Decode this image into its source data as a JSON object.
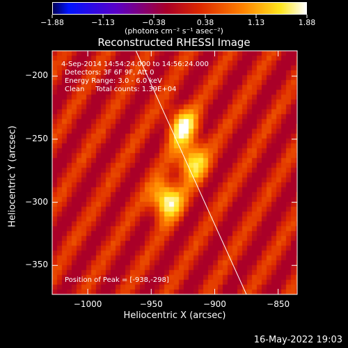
{
  "chart_data": {
    "type": "heatmap",
    "title": "Reconstructed RHESSI Image",
    "xlabel": "Heliocentric X (arcsec)",
    "ylabel": "Heliocentric Y (arcsec)",
    "xlim": [
      -1028,
      -835
    ],
    "ylim": [
      -373,
      -180
    ],
    "xticks": [
      -1000,
      -950,
      -900,
      -850
    ],
    "xtick_labels": [
      "−1000",
      "−950",
      "−900",
      "−850"
    ],
    "yticks": [
      -200,
      -250,
      -300,
      -350
    ],
    "ytick_labels": [
      "−200",
      "−250",
      "−300",
      "−350"
    ],
    "colorbar": {
      "min": -1.88,
      "max": 1.88,
      "ticks": [
        -1.88,
        -1.13,
        -0.38,
        0.38,
        1.13,
        1.88
      ],
      "tick_labels": [
        "−1.88",
        "−1.13",
        "−0.38",
        "0.38",
        "1.13",
        "1.88"
      ],
      "units": "(photons cm⁻² s⁻¹ asec⁻²)",
      "colormap": "rhessi-hot"
    },
    "sources": [
      {
        "x": -925,
        "y": -240,
        "peak": 1.6
      },
      {
        "x": -918,
        "y": -268,
        "peak": 1.55
      },
      {
        "x": -938,
        "y": -298,
        "peak": 1.88
      }
    ],
    "limb_line": [
      [
        -962,
        -180
      ],
      [
        -875,
        -373
      ]
    ],
    "annotations": [
      "4-Sep-2014 14:54:24.000 to 14:56:24.000",
      "Detectors: 3F 6F 9F, Att 0",
      "Energy Range: 3.0 - 6.0 keV",
      "Clean     Total counts: 1.39E+04"
    ],
    "peak_label": "Position of Peak = [-938,-298]"
  },
  "footer": {
    "timestamp": "16-May-2022 19:03"
  },
  "colors": {
    "background": "#000000",
    "axes": "#ffffff"
  }
}
